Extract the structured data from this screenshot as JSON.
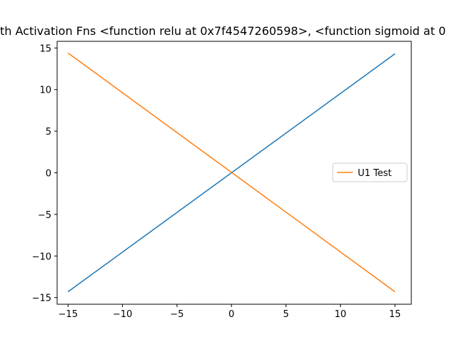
{
  "chart_data": {
    "type": "line",
    "title": "th Activation Fns <function relu at 0x7f4547260598>, <function sigmoid at 0",
    "xlabel": "",
    "ylabel": "",
    "xlim": [
      -16,
      16.5
    ],
    "ylim": [
      -15.8,
      15.8
    ],
    "xticks": [
      -15,
      -10,
      -5,
      0,
      5,
      10,
      15
    ],
    "yticks": [
      -15,
      -10,
      -5,
      0,
      5,
      10,
      15
    ],
    "x_tick_labels": [
      "−15",
      "−10",
      "−5",
      "0",
      "5",
      "10",
      "15"
    ],
    "y_tick_labels": [
      "−15",
      "−10",
      "−5",
      "0",
      "5",
      "10",
      "15"
    ],
    "grid": false,
    "legend": {
      "placement": "center-right",
      "entries": [
        "U1 Test"
      ]
    },
    "series": [
      {
        "color": "#1f77b4",
        "x": [
          -15,
          15
        ],
        "y": [
          -14.3,
          14.3
        ]
      },
      {
        "name": "U1 Test",
        "color": "#ff7f0e",
        "x": [
          -15,
          15
        ],
        "y": [
          14.4,
          -14.3
        ]
      }
    ]
  }
}
